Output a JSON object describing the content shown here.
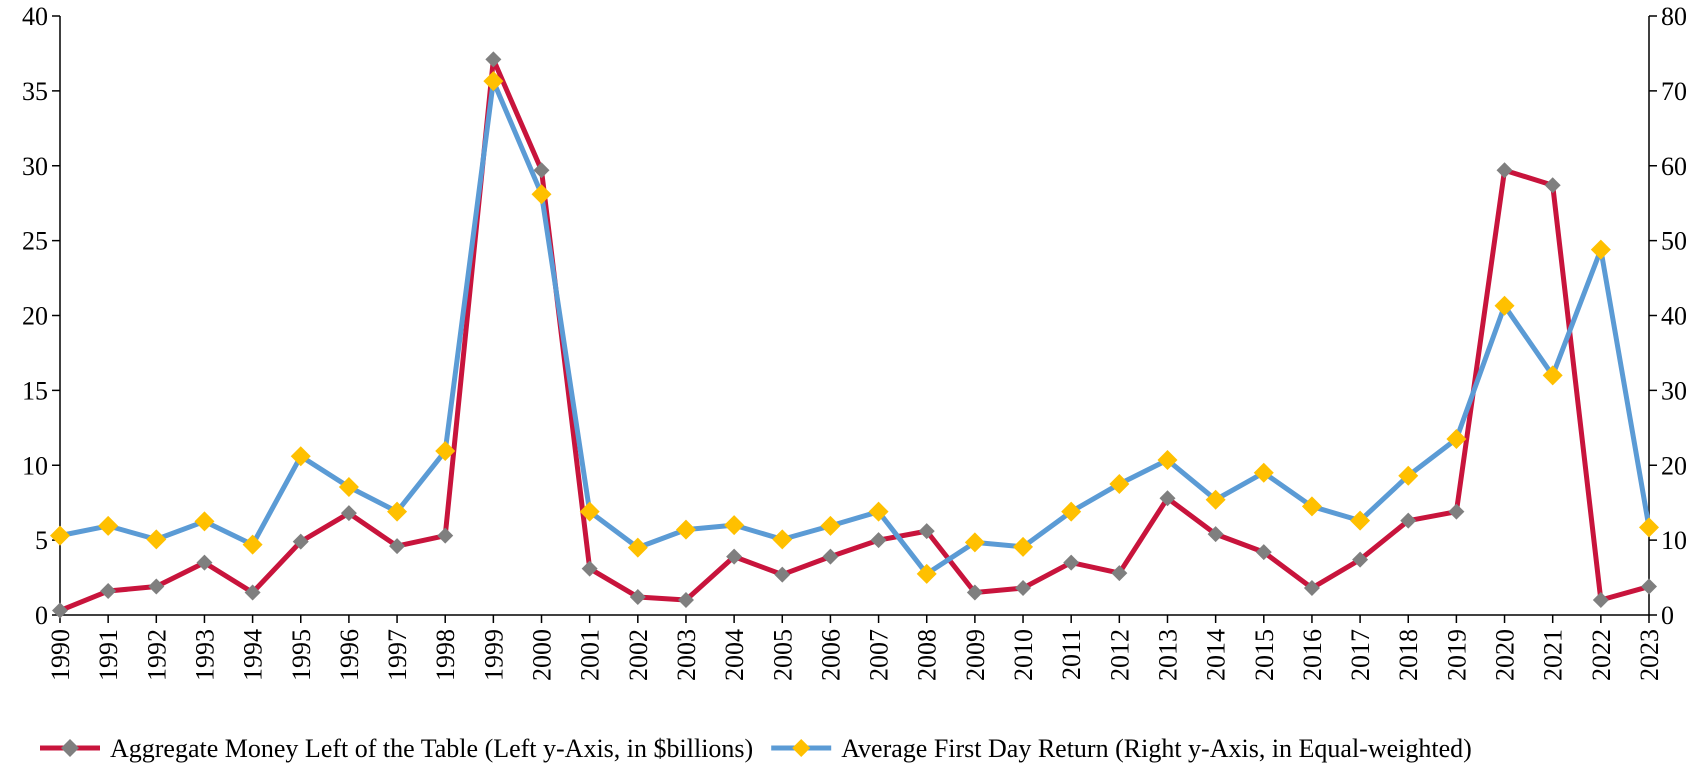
{
  "chart_data": {
    "type": "line",
    "x": [
      "1990",
      "1991",
      "1992",
      "1993",
      "1994",
      "1995",
      "1996",
      "1997",
      "1998",
      "1999",
      "2000",
      "2001",
      "2002",
      "2003",
      "2004",
      "2005",
      "2006",
      "2007",
      "2008",
      "2009",
      "2010",
      "2011",
      "2012",
      "2013",
      "2014",
      "2015",
      "2016",
      "2017",
      "2018",
      "2019",
      "2020",
      "2021",
      "2022",
      "2023"
    ],
    "series": [
      {
        "name": "Aggregate Money Left of the Table (Left y-Axis, in $billions)",
        "color": "#c8143c",
        "marker_color": "#7f7f7f",
        "axis": "y",
        "values": [
          0.3,
          1.6,
          1.9,
          3.5,
          1.5,
          4.9,
          6.8,
          4.6,
          5.3,
          37.1,
          29.7,
          3.1,
          1.2,
          1.0,
          3.9,
          2.7,
          3.9,
          5.0,
          5.6,
          1.5,
          1.8,
          3.5,
          2.8,
          7.8,
          5.4,
          4.2,
          1.8,
          3.7,
          6.3,
          6.9,
          29.7,
          28.7,
          1.0,
          1.9
        ]
      },
      {
        "name": "Average First Day Return (Right y-Axis, in Equal-weighted)",
        "color": "#5b9bd5",
        "marker_color": "#ffc000",
        "axis": "y2",
        "values": [
          10.6,
          11.9,
          10.1,
          12.5,
          9.4,
          21.2,
          17.1,
          13.8,
          21.9,
          71.3,
          56.2,
          13.8,
          9.0,
          11.4,
          12.0,
          10.1,
          11.9,
          13.8,
          5.5,
          9.7,
          9.1,
          13.8,
          17.5,
          20.7,
          15.4,
          19.0,
          14.5,
          12.6,
          18.6,
          23.5,
          41.3,
          32.0,
          48.8,
          11.7
        ]
      }
    ],
    "ylim": [
      0,
      40
    ],
    "yticks": [
      0,
      5,
      10,
      15,
      20,
      25,
      30,
      35,
      40
    ],
    "y2lim": [
      0,
      80
    ],
    "y2ticks": [
      0,
      10,
      20,
      30,
      40,
      50,
      60,
      70,
      80
    ],
    "legend": "bottom"
  }
}
